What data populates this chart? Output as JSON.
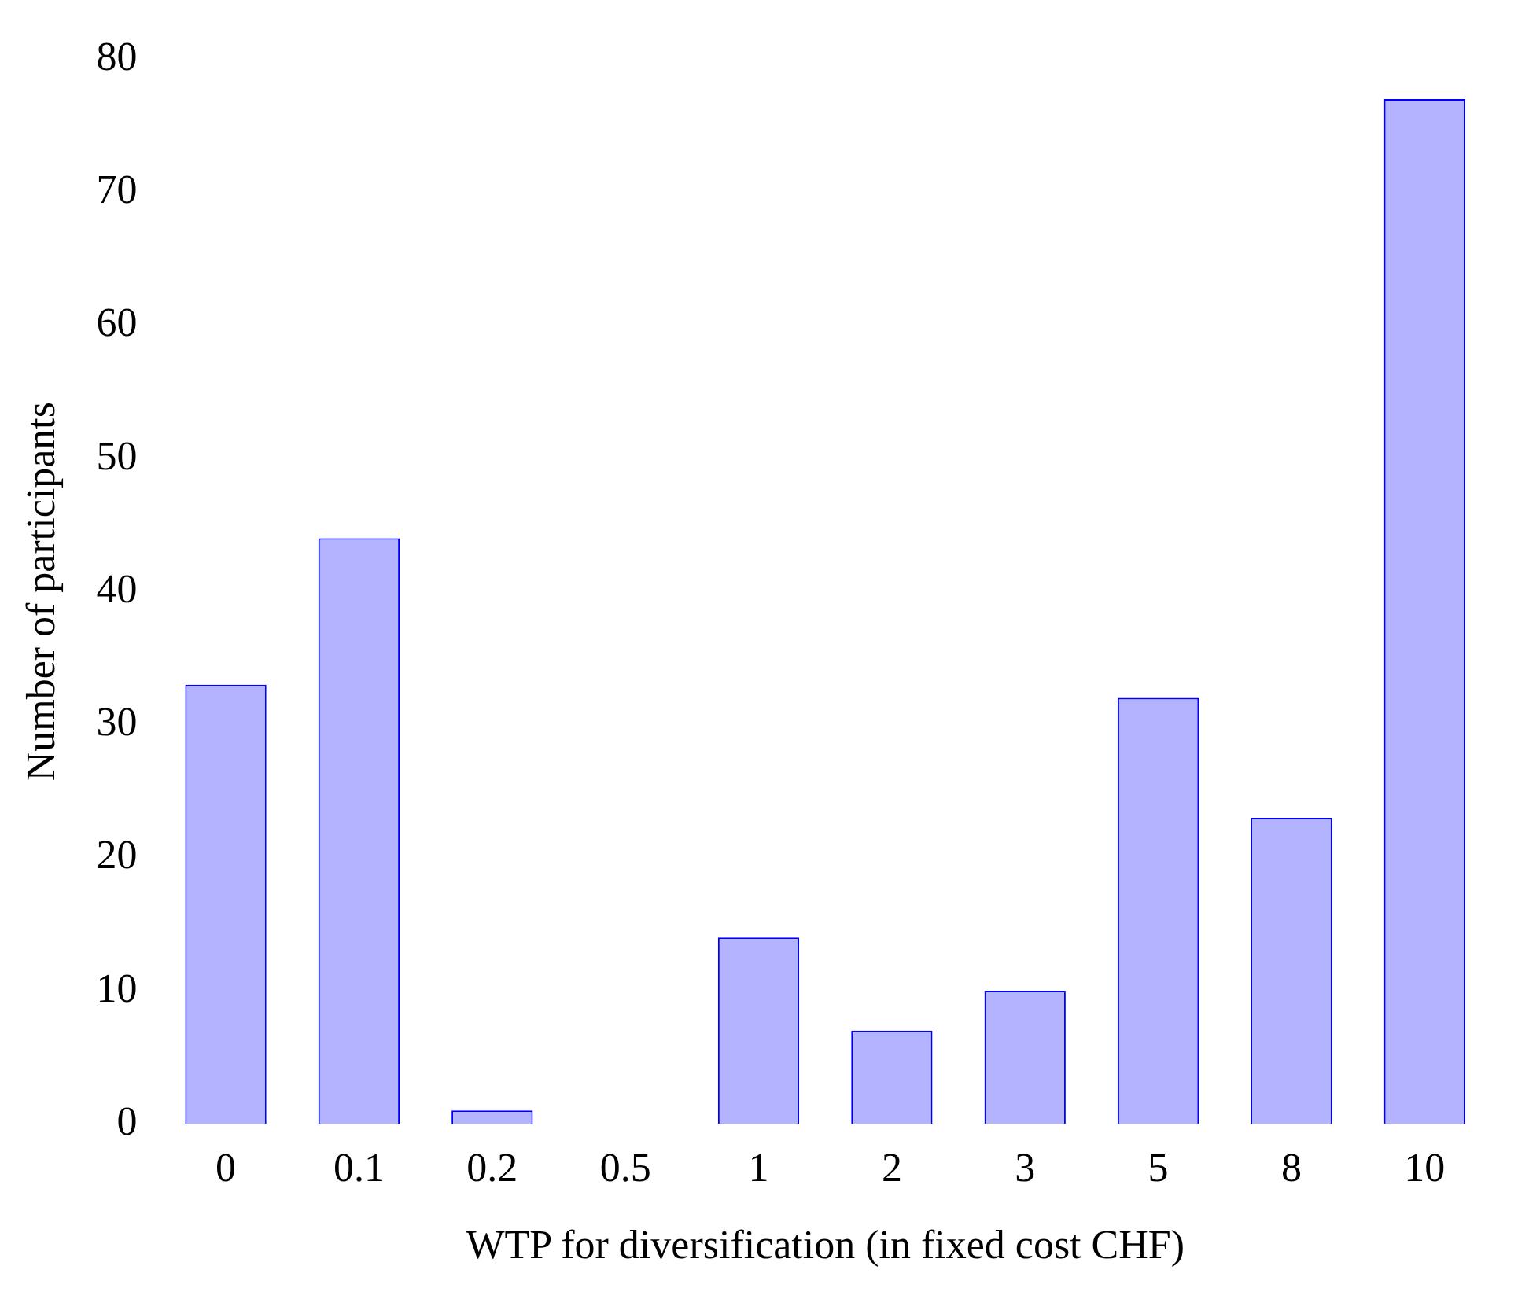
{
  "chart_data": {
    "type": "bar",
    "xlabel": "WTP for diversification (in fixed cost CHF)",
    "ylabel": "Number of participants",
    "categories": [
      "0",
      "0.1",
      "0.2",
      "0.5",
      "1",
      "2",
      "3",
      "5",
      "8",
      "10"
    ],
    "series": [
      {
        "color": "#b3b3ff",
        "values": [
          33,
          44,
          1,
          0,
          14,
          7,
          10,
          32,
          23,
          77
        ]
      }
    ],
    "ylim": [
      0,
      80
    ],
    "yticks": [
      0,
      10,
      20,
      30,
      40,
      50,
      60,
      70,
      80
    ],
    "grid": false,
    "legend": false
  }
}
